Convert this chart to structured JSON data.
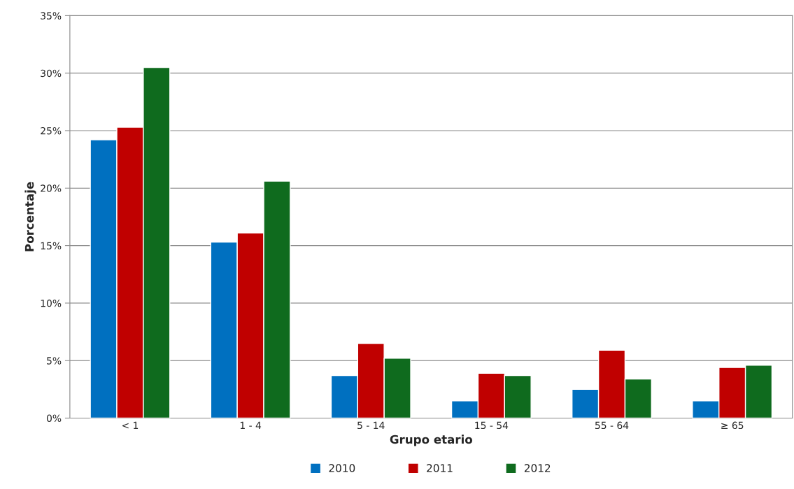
{
  "chart_data": {
    "type": "bar",
    "xlabel": "Grupo etario",
    "ylabel": "Porcentaje",
    "categories": [
      "< 1",
      "1 - 4",
      "5 - 14",
      "15 - 54",
      "55 - 64",
      "≥ 65"
    ],
    "series": [
      {
        "name": "2010",
        "color": "#0070c0",
        "values": [
          24.2,
          15.3,
          3.7,
          1.5,
          2.5,
          1.5
        ]
      },
      {
        "name": "2011",
        "color": "#c00000",
        "values": [
          25.3,
          16.1,
          6.5,
          3.9,
          5.9,
          4.4
        ]
      },
      {
        "name": "2012",
        "color": "#0f6b1e",
        "values": [
          30.5,
          20.6,
          5.2,
          3.7,
          3.4,
          4.6
        ]
      }
    ],
    "ylim": [
      0,
      35
    ],
    "yticks": [
      {
        "value": 0,
        "label": "0%"
      },
      {
        "value": 5,
        "label": "5%"
      },
      {
        "value": 10,
        "label": "10%"
      },
      {
        "value": 15,
        "label": "15%"
      },
      {
        "value": 20,
        "label": "20%"
      },
      {
        "value": 25,
        "label": "25%"
      },
      {
        "value": 30,
        "label": "30%"
      },
      {
        "value": 35,
        "label": "35%"
      }
    ],
    "grid": "y",
    "legend": "bottom"
  }
}
